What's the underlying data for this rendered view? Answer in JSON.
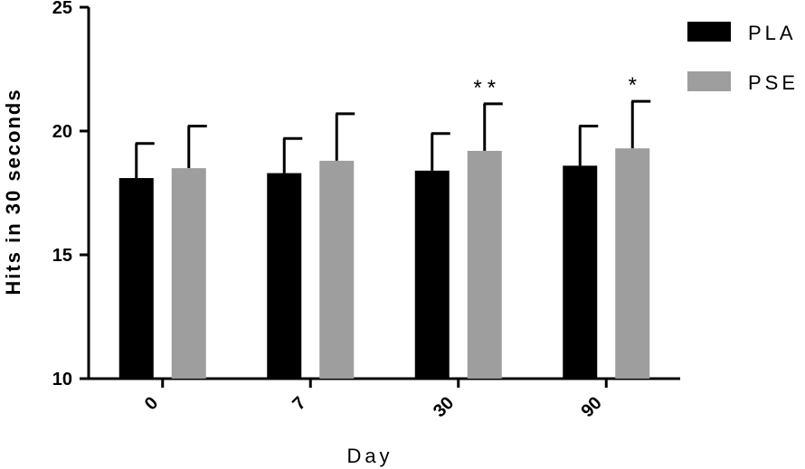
{
  "chart_data": {
    "type": "bar",
    "title": "",
    "xlabel": "Day",
    "ylabel": "Hits in 30 seconds",
    "ylim": [
      10,
      25
    ],
    "yticks": [
      10,
      15,
      20,
      25
    ],
    "categories": [
      "0",
      "7",
      "30",
      "90"
    ],
    "series": [
      {
        "name": "PLA",
        "color": "#000000",
        "values": [
          18.1,
          18.3,
          18.4,
          18.6
        ],
        "errors": [
          1.4,
          1.4,
          1.5,
          1.6
        ]
      },
      {
        "name": "PSE",
        "color": "#9e9e9e",
        "values": [
          18.5,
          18.8,
          19.2,
          19.3
        ],
        "errors": [
          1.7,
          1.9,
          1.9,
          1.9
        ]
      }
    ],
    "annotations": [
      {
        "category": "30",
        "series": "PSE",
        "text": "**"
      },
      {
        "category": "90",
        "series": "PSE",
        "text": "*"
      }
    ],
    "legend_position": "top-right",
    "grid": false
  }
}
